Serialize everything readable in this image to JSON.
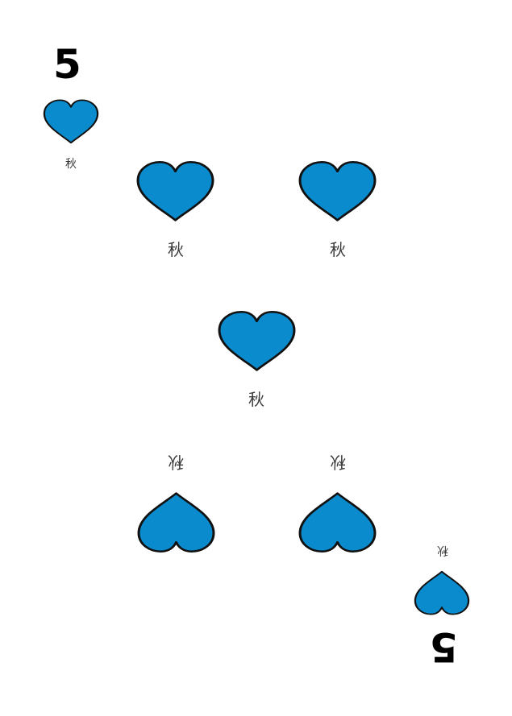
{
  "card": {
    "rank": "5",
    "suit": "heart",
    "pip_label": "秋",
    "suit_color": "#0a8bcd",
    "outline_color": "#111111"
  }
}
